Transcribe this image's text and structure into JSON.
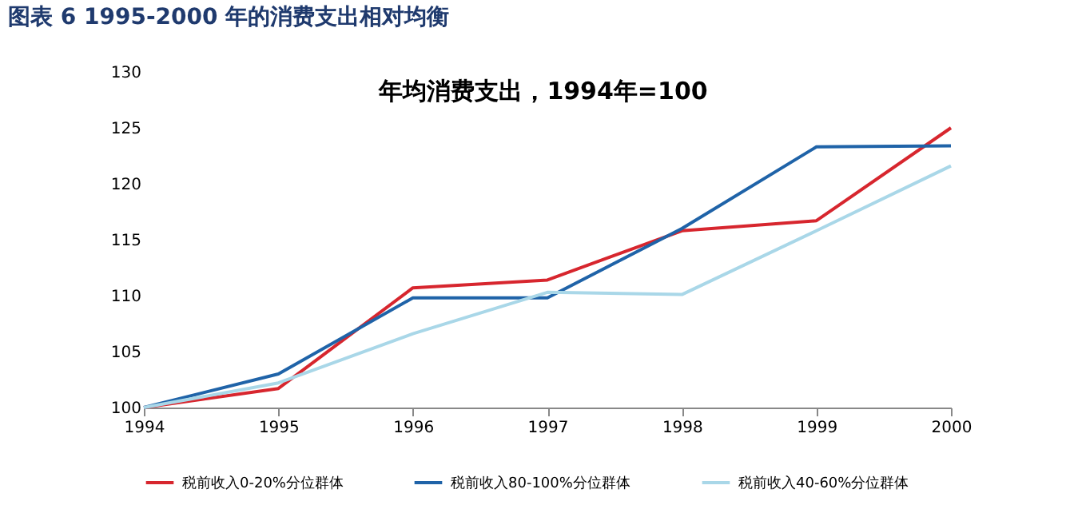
{
  "chart_data": {
    "type": "line",
    "title": "图表 6   1995-2000 年的消费支出相对均衡",
    "annotations": [
      "年均消费支出，1994年=100"
    ],
    "categories": [
      "1994",
      "1995",
      "1996",
      "1997",
      "1998",
      "1999",
      "2000"
    ],
    "series": [
      {
        "name": "税前收入0-20%分位群体",
        "color": "#d7262e",
        "values": [
          100,
          101.7,
          110.7,
          111.4,
          115.8,
          116.7,
          125
        ]
      },
      {
        "name": "税前收入80-100%分位群体",
        "color": "#1f63a8",
        "values": [
          100,
          103,
          109.8,
          109.8,
          116,
          123.3,
          123.4
        ]
      },
      {
        "name": "税前收入40-60%分位群体",
        "color": "#a9d7e8",
        "values": [
          100,
          102.2,
          106.6,
          110.3,
          110.1,
          115.8,
          121.6
        ]
      }
    ],
    "ylim": [
      100,
      130
    ],
    "yticks": [
      100,
      105,
      110,
      115,
      120,
      125,
      130
    ],
    "grid": false,
    "legend": "bottom",
    "marker": "none",
    "line_style": "solid"
  }
}
